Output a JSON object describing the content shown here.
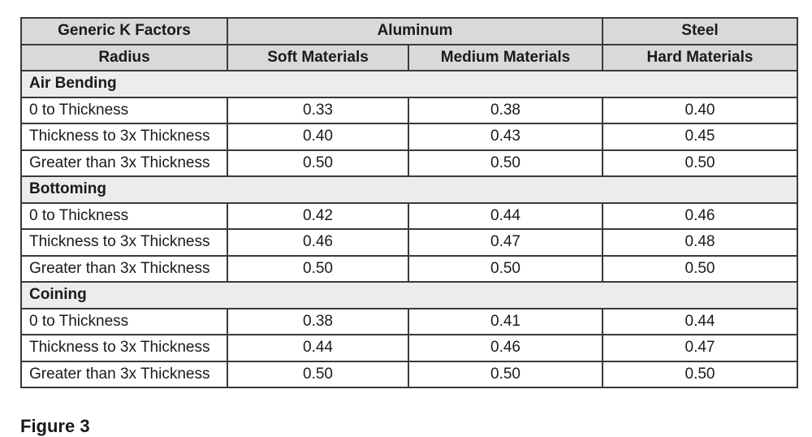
{
  "table": {
    "header": [
      [
        "Generic K Factors",
        "Aluminum",
        "Steel"
      ],
      [
        "Radius",
        "Soft Materials",
        "Medium Materials",
        "Hard Materials"
      ]
    ],
    "sections": [
      {
        "title": "Air Bending",
        "rows": [
          [
            "0 to Thickness",
            "0.33",
            "0.38",
            "0.40"
          ],
          [
            "Thickness to 3x Thickness",
            "0.40",
            "0.43",
            "0.45"
          ],
          [
            "Greater than 3x Thickness",
            "0.50",
            "0.50",
            "0.50"
          ]
        ]
      },
      {
        "title": "Bottoming",
        "rows": [
          [
            "0 to Thickness",
            "0.42",
            "0.44",
            "0.46"
          ],
          [
            "Thickness to 3x Thickness",
            "0.46",
            "0.47",
            "0.48"
          ],
          [
            "Greater than 3x Thickness",
            "0.50",
            "0.50",
            "0.50"
          ]
        ]
      },
      {
        "title": "Coining",
        "rows": [
          [
            "0 to Thickness",
            "0.38",
            "0.41",
            "0.44"
          ],
          [
            "Thickness to 3x Thickness",
            "0.44",
            "0.46",
            "0.47"
          ],
          [
            "Greater than 3x Thickness",
            "0.50",
            "0.50",
            "0.50"
          ]
        ]
      }
    ]
  },
  "caption": "Figure 3"
}
